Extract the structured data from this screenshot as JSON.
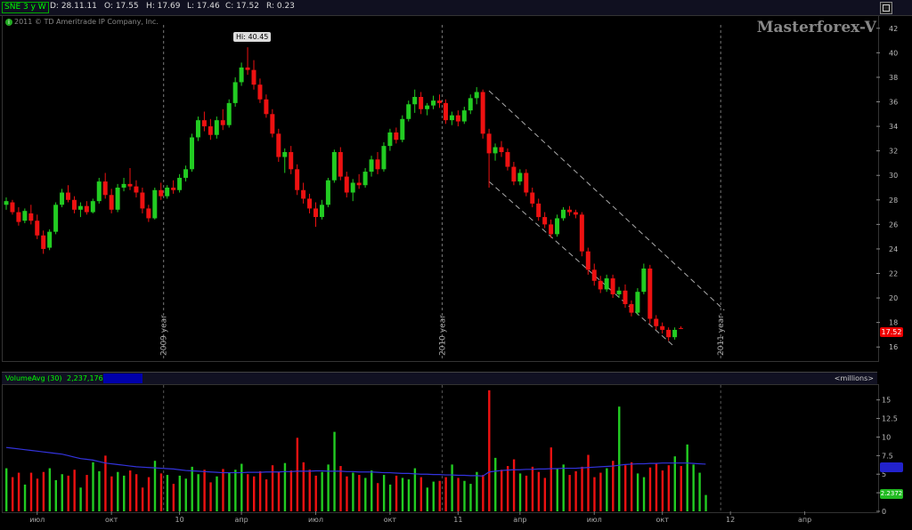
{
  "header": {
    "symbol": "SNE",
    "timeframe": "3 y W",
    "date": "D: 28.11.11",
    "open": "O: 17.55",
    "high": "H: 17.69",
    "low": "L: 17.46",
    "close": "C: 17.52",
    "range": "R: 0.23"
  },
  "copyright": "2011 © TD Ameritrade IP Company, Inc.",
  "watermark": "Masterforex-V",
  "hi_label": "Hi: 40.45",
  "year_labels": [
    "2009 year",
    "2010 year",
    "2011 year"
  ],
  "last_price": "17.52",
  "volume": {
    "indicator": "VolumeAvg (30)",
    "value": "2,237,176",
    "units": "<millions>",
    "last_avg": "2.2372"
  },
  "colors": {
    "up": "#22cc22",
    "down": "#ee1111",
    "avg": "#3333dd",
    "dash": "#aaaaaa"
  },
  "chart_data": {
    "type": "candlestick",
    "price_axis": {
      "ylim": [
        15,
        43
      ],
      "ticks": [
        16,
        18,
        20,
        22,
        24,
        26,
        28,
        30,
        32,
        34,
        36,
        38,
        40,
        42
      ]
    },
    "volume_axis": {
      "ylim": [
        0,
        17
      ],
      "ticks": [
        0,
        2.5,
        5,
        7.5,
        10,
        12.5,
        15
      ],
      "tick_labels": [
        "0",
        "2.5",
        "5",
        "7.5",
        "10",
        "12.5",
        "15"
      ]
    },
    "x_ticks": [
      "июл",
      "окт",
      "10",
      "апр",
      "июл",
      "окт",
      "11",
      "апр",
      "июл",
      "окт",
      "12",
      "апр"
    ],
    "candles": [
      [
        27.6,
        28.2,
        27.2,
        27.9
      ],
      [
        27.8,
        28.0,
        26.8,
        27.0
      ],
      [
        27.0,
        27.4,
        25.9,
        26.2
      ],
      [
        26.3,
        27.3,
        26.1,
        27.1
      ],
      [
        26.9,
        27.6,
        26.0,
        26.3
      ],
      [
        26.3,
        26.8,
        24.8,
        25.1
      ],
      [
        25.1,
        25.5,
        23.6,
        24.0
      ],
      [
        24.1,
        25.6,
        23.9,
        25.4
      ],
      [
        25.4,
        27.8,
        25.2,
        27.6
      ],
      [
        27.6,
        28.9,
        27.4,
        28.6
      ],
      [
        28.6,
        29.2,
        27.8,
        28.0
      ],
      [
        28.0,
        28.3,
        26.9,
        27.2
      ],
      [
        27.2,
        27.8,
        26.6,
        27.5
      ],
      [
        27.5,
        27.9,
        26.8,
        27.0
      ],
      [
        27.0,
        28.1,
        26.9,
        27.9
      ],
      [
        27.9,
        29.8,
        27.7,
        29.5
      ],
      [
        29.5,
        30.2,
        28.1,
        28.4
      ],
      [
        28.4,
        28.9,
        26.9,
        27.2
      ],
      [
        27.2,
        29.3,
        27.0,
        29.0
      ],
      [
        29.0,
        29.8,
        28.7,
        29.3
      ],
      [
        29.3,
        30.6,
        28.8,
        29.1
      ],
      [
        29.1,
        29.6,
        28.2,
        28.6
      ],
      [
        28.6,
        29.0,
        26.9,
        27.3
      ],
      [
        27.3,
        27.6,
        26.2,
        26.5
      ],
      [
        26.5,
        29.0,
        26.4,
        28.8
      ],
      [
        28.8,
        29.4,
        28.0,
        28.3
      ],
      [
        28.3,
        29.2,
        28.1,
        29.0
      ],
      [
        29.0,
        29.6,
        28.5,
        28.8
      ],
      [
        28.8,
        30.1,
        28.6,
        29.8
      ],
      [
        29.8,
        30.8,
        29.5,
        30.5
      ],
      [
        30.5,
        33.4,
        30.3,
        33.1
      ],
      [
        33.1,
        34.8,
        32.8,
        34.5
      ],
      [
        34.5,
        35.2,
        33.6,
        34.0
      ],
      [
        34.0,
        34.6,
        32.9,
        33.3
      ],
      [
        33.3,
        34.8,
        33.0,
        34.5
      ],
      [
        34.5,
        35.4,
        33.7,
        34.1
      ],
      [
        34.1,
        36.2,
        33.9,
        35.9
      ],
      [
        35.9,
        38.0,
        35.6,
        37.6
      ],
      [
        37.6,
        39.2,
        37.3,
        38.8
      ],
      [
        38.8,
        40.45,
        38.2,
        38.6
      ],
      [
        38.6,
        39.4,
        37.0,
        37.4
      ],
      [
        37.4,
        37.9,
        35.9,
        36.2
      ],
      [
        36.2,
        36.6,
        34.7,
        35.0
      ],
      [
        35.0,
        35.4,
        33.1,
        33.4
      ],
      [
        33.4,
        33.8,
        31.1,
        31.5
      ],
      [
        31.5,
        32.2,
        30.2,
        31.9
      ],
      [
        31.9,
        32.4,
        30.1,
        30.5
      ],
      [
        30.5,
        30.9,
        28.4,
        28.8
      ],
      [
        28.8,
        29.4,
        27.7,
        28.1
      ],
      [
        28.1,
        28.5,
        26.9,
        27.3
      ],
      [
        27.3,
        27.8,
        25.8,
        26.6
      ],
      [
        26.6,
        28.0,
        26.4,
        27.6
      ],
      [
        27.6,
        29.8,
        27.4,
        29.6
      ],
      [
        29.6,
        32.1,
        29.4,
        31.9
      ],
      [
        31.9,
        32.3,
        29.6,
        29.9
      ],
      [
        29.9,
        30.3,
        28.2,
        28.6
      ],
      [
        28.6,
        29.7,
        27.9,
        29.4
      ],
      [
        29.4,
        30.1,
        28.9,
        29.2
      ],
      [
        29.2,
        30.6,
        29.0,
        30.3
      ],
      [
        30.3,
        31.6,
        29.9,
        31.3
      ],
      [
        31.3,
        31.9,
        30.1,
        30.5
      ],
      [
        30.5,
        32.7,
        30.3,
        32.4
      ],
      [
        32.4,
        33.8,
        32.0,
        33.5
      ],
      [
        33.5,
        33.9,
        32.6,
        32.9
      ],
      [
        32.9,
        34.9,
        32.7,
        34.6
      ],
      [
        34.6,
        36.1,
        34.4,
        35.8
      ],
      [
        35.8,
        37.0,
        35.1,
        36.4
      ],
      [
        36.4,
        36.8,
        35.0,
        35.4
      ],
      [
        35.4,
        35.9,
        34.9,
        35.7
      ],
      [
        35.7,
        36.5,
        35.4,
        36.1
      ],
      [
        36.1,
        36.6,
        35.5,
        35.9
      ],
      [
        35.9,
        36.2,
        34.2,
        34.5
      ],
      [
        34.5,
        35.2,
        34.1,
        34.9
      ],
      [
        34.9,
        35.3,
        34.0,
        34.4
      ],
      [
        34.4,
        35.6,
        34.2,
        35.3
      ],
      [
        35.3,
        36.6,
        35.0,
        36.3
      ],
      [
        36.3,
        37.2,
        35.8,
        36.8
      ],
      [
        36.8,
        37.0,
        33.0,
        33.4
      ],
      [
        33.4,
        33.8,
        29.0,
        31.8
      ],
      [
        31.8,
        32.6,
        31.2,
        32.3
      ],
      [
        32.3,
        32.8,
        31.5,
        31.9
      ],
      [
        31.9,
        32.2,
        30.4,
        30.7
      ],
      [
        30.7,
        31.1,
        29.2,
        29.5
      ],
      [
        29.5,
        30.5,
        29.2,
        30.2
      ],
      [
        30.2,
        30.5,
        28.3,
        28.6
      ],
      [
        28.6,
        29.0,
        27.4,
        27.7
      ],
      [
        27.7,
        28.1,
        26.3,
        26.6
      ],
      [
        26.6,
        27.0,
        25.7,
        26.0
      ],
      [
        26.0,
        26.4,
        24.9,
        25.2
      ],
      [
        25.2,
        26.8,
        25.0,
        26.5
      ],
      [
        26.5,
        27.4,
        26.3,
        27.2
      ],
      [
        27.2,
        27.5,
        26.7,
        27.0
      ],
      [
        27.0,
        27.2,
        26.5,
        26.8
      ],
      [
        26.8,
        27.0,
        23.4,
        23.8
      ],
      [
        23.8,
        24.1,
        21.9,
        22.3
      ],
      [
        22.3,
        22.8,
        21.0,
        21.4
      ],
      [
        21.4,
        21.8,
        20.4,
        20.7
      ],
      [
        20.7,
        21.9,
        20.5,
        21.6
      ],
      [
        21.6,
        21.9,
        20.0,
        20.3
      ],
      [
        20.3,
        20.9,
        20.0,
        20.6
      ],
      [
        20.6,
        21.1,
        19.2,
        19.5
      ],
      [
        19.5,
        19.8,
        18.5,
        18.8
      ],
      [
        18.8,
        20.8,
        18.6,
        20.5
      ],
      [
        20.5,
        22.8,
        20.3,
        22.4
      ],
      [
        22.4,
        22.7,
        17.9,
        18.3
      ],
      [
        18.3,
        18.6,
        17.4,
        17.7
      ],
      [
        17.7,
        18.0,
        17.1,
        17.4
      ],
      [
        17.4,
        17.6,
        16.5,
        16.8
      ],
      [
        16.8,
        17.6,
        16.6,
        17.4
      ],
      [
        17.55,
        17.69,
        17.46,
        17.52
      ]
    ],
    "volume": [
      5.8,
      4.6,
      5.2,
      3.6,
      5.2,
      4.4,
      5.3,
      5.8,
      4.2,
      5.0,
      4.8,
      5.6,
      3.2,
      4.9,
      6.6,
      5.4,
      7.5,
      4.7,
      5.3,
      4.8,
      5.5,
      5.0,
      3.2,
      4.6,
      6.8,
      5.1,
      4.9,
      3.7,
      4.8,
      4.4,
      6.0,
      5.0,
      5.6,
      3.9,
      4.7,
      5.7,
      5.2,
      5.6,
      6.4,
      5.0,
      4.7,
      5.4,
      4.3,
      6.2,
      5.3,
      6.5,
      5.5,
      9.9,
      6.6,
      5.6,
      4.8,
      5.3,
      6.3,
      10.7,
      6.1,
      4.7,
      5.2,
      4.9,
      4.5,
      5.5,
      3.8,
      4.9,
      3.6,
      4.8,
      4.5,
      4.3,
      5.8,
      4.6,
      3.2,
      4.0,
      4.1,
      4.6,
      6.3,
      4.5,
      4.1,
      3.7,
      5.3,
      4.9,
      16.3,
      7.2,
      5.6,
      6.1,
      7.0,
      5.1,
      4.8,
      6.0,
      5.3,
      4.5,
      8.6,
      5.8,
      6.3,
      4.9,
      5.4,
      6.0,
      7.6,
      4.6,
      5.2,
      5.8,
      6.8,
      14.1,
      6.2,
      6.6,
      5.1,
      4.6,
      5.9,
      6.4,
      5.5,
      6.2,
      7.4,
      6.1,
      9.0,
      6.3,
      5.2,
      2.2
    ],
    "volume_avg": [
      8.6,
      8.5,
      8.4,
      8.3,
      8.2,
      8.1,
      8.0,
      7.9,
      7.8,
      7.7,
      7.5,
      7.3,
      7.1,
      7.0,
      6.9,
      6.7,
      6.5,
      6.4,
      6.3,
      6.2,
      6.1,
      6.0,
      5.95,
      5.9,
      5.85,
      5.8,
      5.75,
      5.7,
      5.6,
      5.5,
      5.45,
      5.4,
      5.35,
      5.3,
      5.25,
      5.2,
      5.2,
      5.2,
      5.2,
      5.25,
      5.25,
      5.25,
      5.3,
      5.3,
      5.3,
      5.35,
      5.35,
      5.4,
      5.4,
      5.4,
      5.45,
      5.45,
      5.4,
      5.4,
      5.4,
      5.35,
      5.35,
      5.3,
      5.3,
      5.3,
      5.25,
      5.2,
      5.2,
      5.15,
      5.1,
      5.1,
      5.05,
      5.0,
      5.0,
      4.95,
      4.95,
      4.9,
      4.9,
      4.85,
      4.85,
      4.8,
      4.8,
      4.75,
      5.3,
      5.4,
      5.5,
      5.55,
      5.6,
      5.6,
      5.65,
      5.65,
      5.7,
      5.7,
      5.75,
      5.75,
      5.8,
      5.8,
      5.8,
      5.85,
      5.9,
      5.95,
      6.0,
      6.05,
      6.1,
      6.2,
      6.3,
      6.35,
      6.4,
      6.4,
      6.45,
      6.45,
      6.5,
      6.5,
      6.5,
      6.5,
      6.5,
      6.45,
      6.4,
      6.35
    ],
    "channel": {
      "upper": [
        [
          78,
          36.9
        ],
        [
          116,
          19.0
        ]
      ],
      "lower": [
        [
          78,
          29.5
        ],
        [
          108,
          16.0
        ]
      ]
    }
  }
}
